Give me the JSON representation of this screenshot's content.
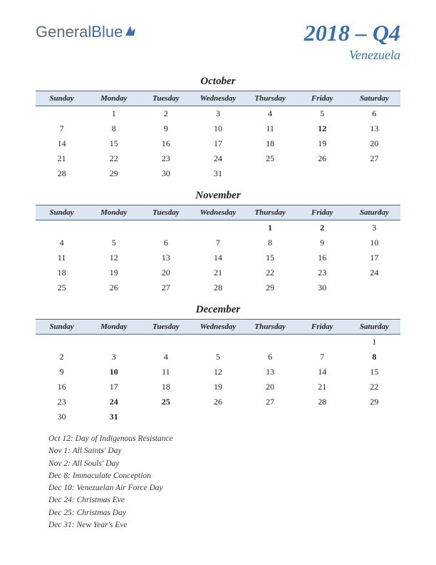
{
  "logo": {
    "part1": "General",
    "part2": "Blue"
  },
  "title": {
    "main": "2018 – Q4",
    "sub": "Venezuela"
  },
  "weekdays": [
    "Sunday",
    "Monday",
    "Tuesday",
    "Wednesday",
    "Thursday",
    "Friday",
    "Saturday"
  ],
  "months": [
    {
      "name": "October",
      "weeks": [
        [
          "",
          "1",
          "2",
          "3",
          "4",
          "5",
          "6"
        ],
        [
          "7",
          "8",
          "9",
          "10",
          "11",
          "12",
          "13"
        ],
        [
          "14",
          "15",
          "16",
          "17",
          "18",
          "19",
          "20"
        ],
        [
          "21",
          "22",
          "23",
          "24",
          "25",
          "26",
          "27"
        ],
        [
          "28",
          "29",
          "30",
          "31",
          "",
          "",
          ""
        ]
      ],
      "holidays": [
        "12"
      ]
    },
    {
      "name": "November",
      "weeks": [
        [
          "",
          "",
          "",
          "",
          "1",
          "2",
          "3"
        ],
        [
          "4",
          "5",
          "6",
          "7",
          "8",
          "9",
          "10"
        ],
        [
          "11",
          "12",
          "13",
          "14",
          "15",
          "16",
          "17"
        ],
        [
          "18",
          "19",
          "20",
          "21",
          "22",
          "23",
          "24"
        ],
        [
          "25",
          "26",
          "27",
          "28",
          "29",
          "30",
          ""
        ]
      ],
      "holidays": [
        "1",
        "2"
      ]
    },
    {
      "name": "December",
      "weeks": [
        [
          "",
          "",
          "",
          "",
          "",
          "",
          "1"
        ],
        [
          "2",
          "3",
          "4",
          "5",
          "6",
          "7",
          "8"
        ],
        [
          "9",
          "10",
          "11",
          "12",
          "13",
          "14",
          "15"
        ],
        [
          "16",
          "17",
          "18",
          "19",
          "20",
          "21",
          "22"
        ],
        [
          "23",
          "24",
          "25",
          "26",
          "27",
          "28",
          "29"
        ],
        [
          "30",
          "31",
          "",
          "",
          "",
          "",
          ""
        ]
      ],
      "holidays": [
        "8",
        "10",
        "24",
        "25",
        "31"
      ]
    }
  ],
  "holiday_list": [
    "Oct 12: Day of Indigenous Resistance",
    "Nov 1: All Saints' Day",
    "Nov 2: All Souls' Day",
    "Dec 8: Immaculate Conception",
    "Dec 10: Venezuelan Air Force Day",
    "Dec 24: Christmas Eve",
    "Dec 25: Christmas Day",
    "Dec 31: New Year's Eve"
  ],
  "colors": {
    "brand": "#3b6fa8",
    "header_bg": "#dce5f2",
    "header_border": "#4a6a8a",
    "holiday": "#c00000"
  }
}
